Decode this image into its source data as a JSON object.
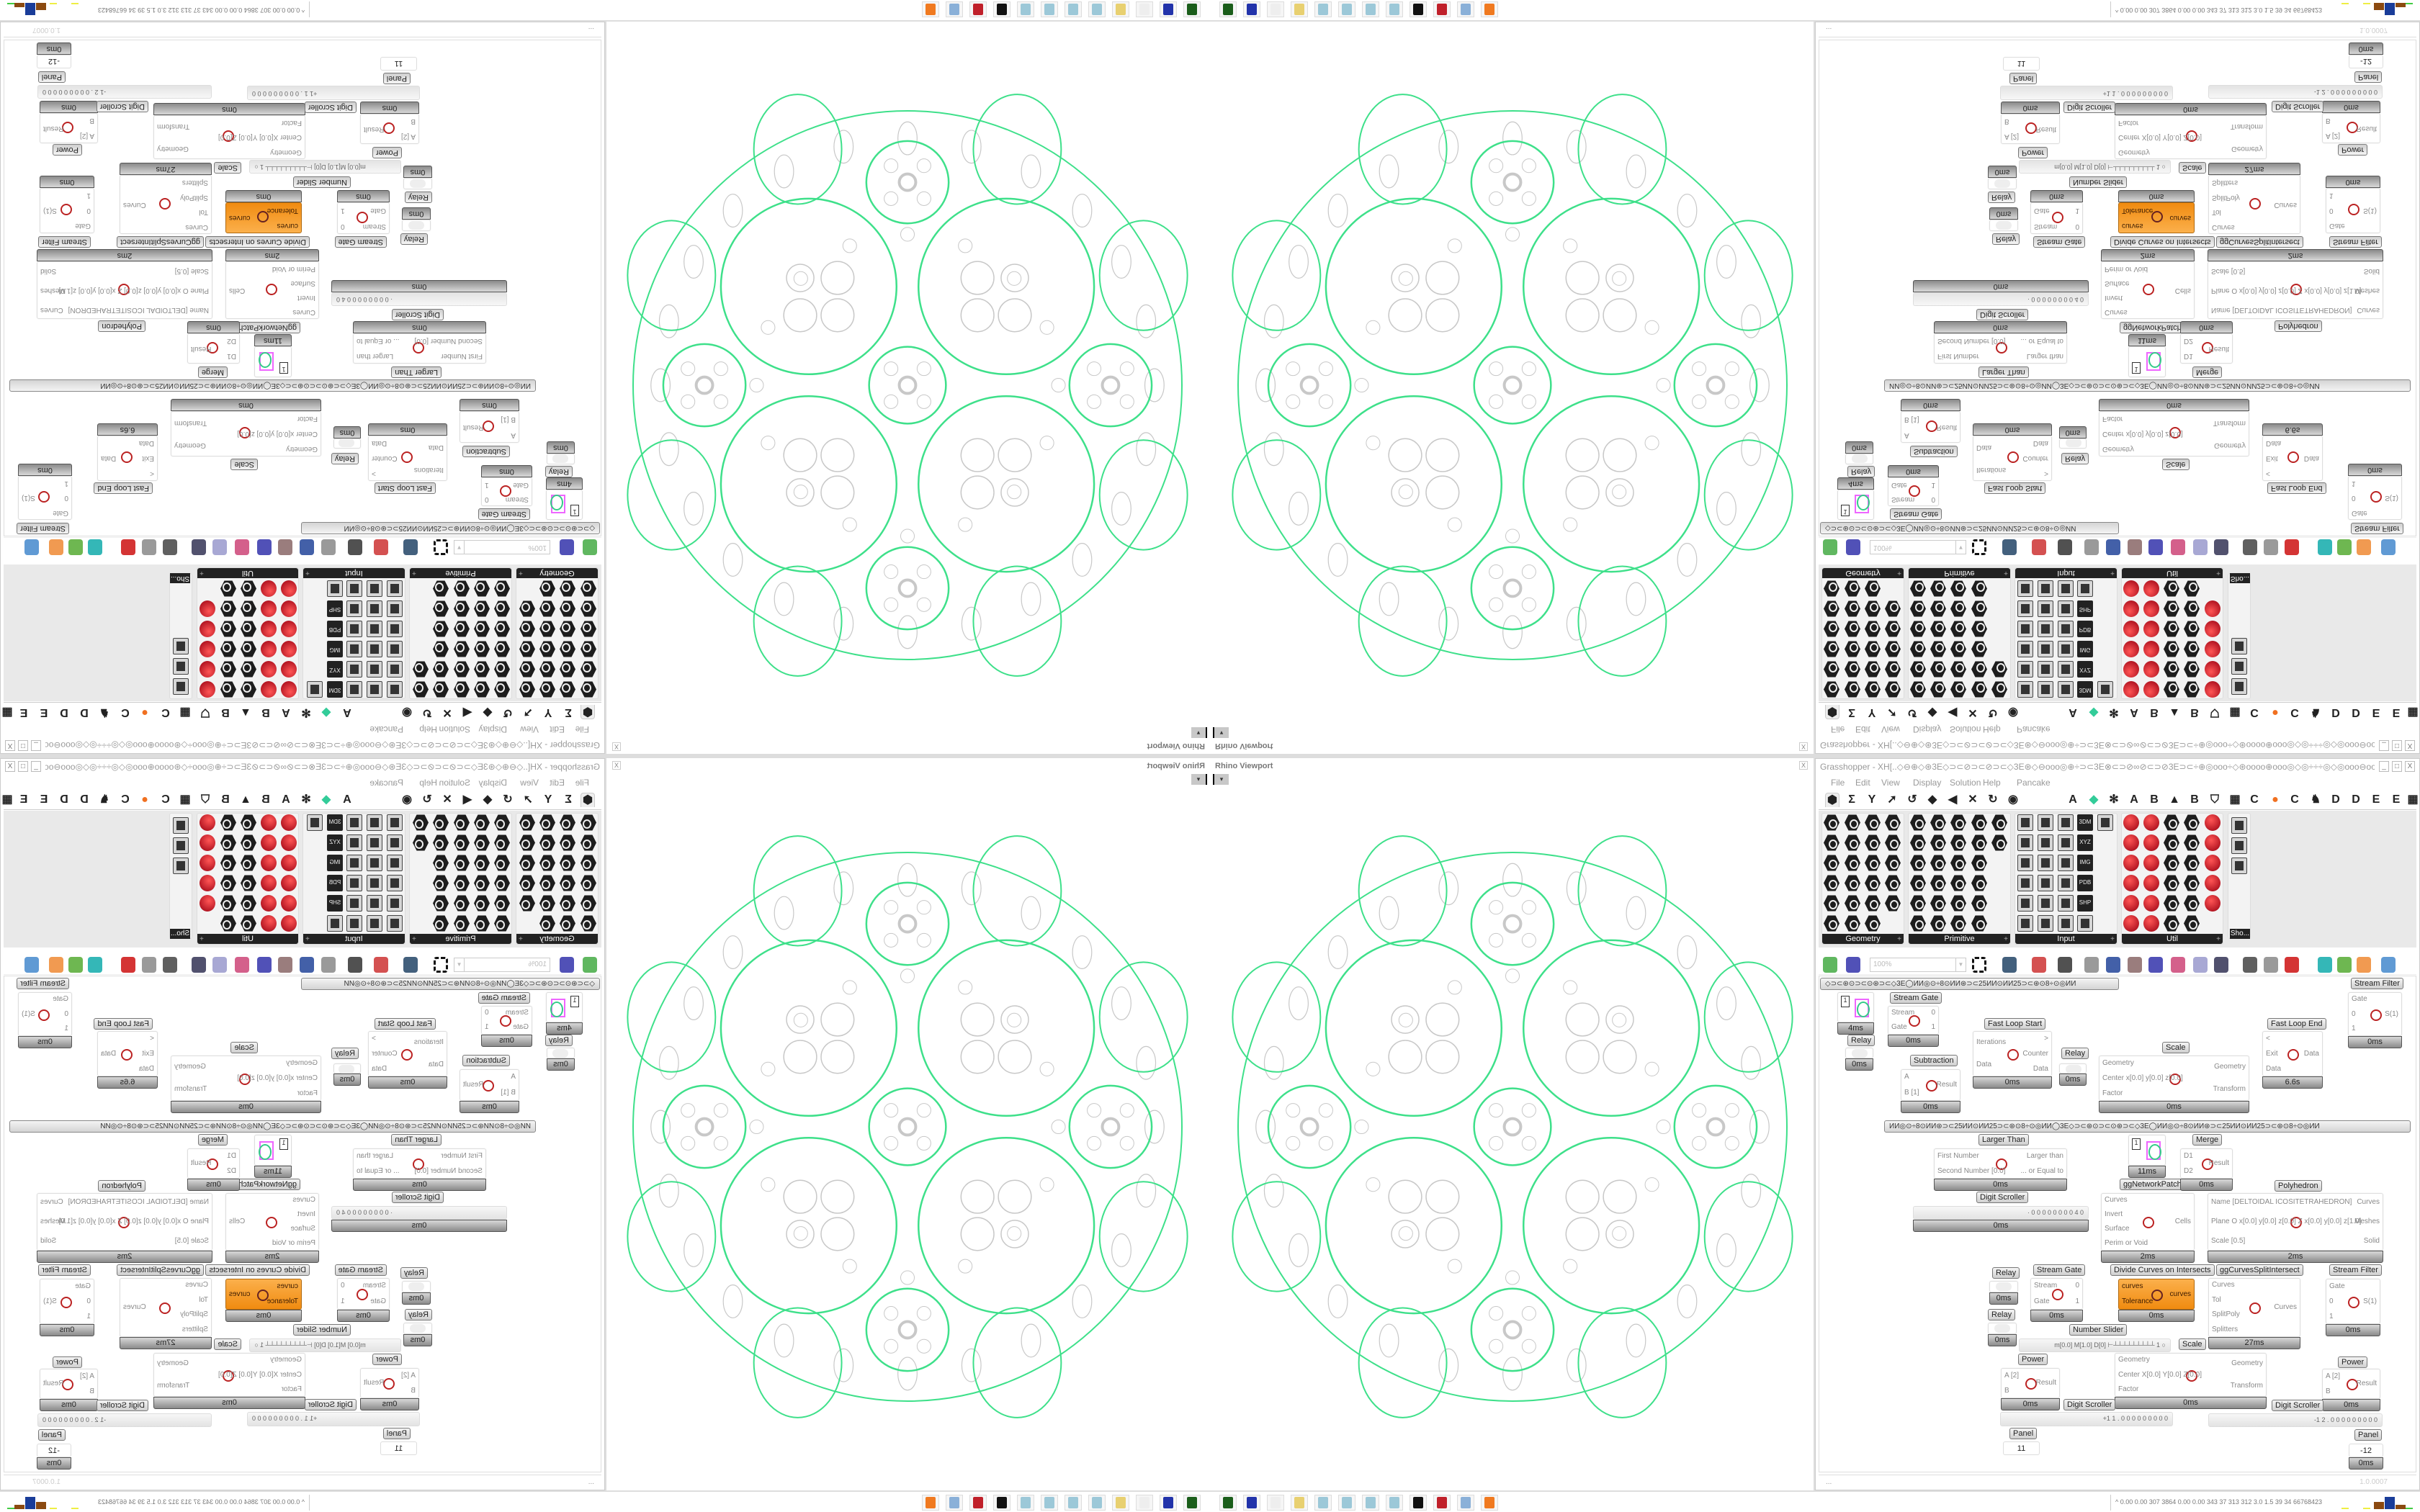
{
  "viewport": {
    "title": "Rhino Viewport",
    "close": "X",
    "dropdown": "▾",
    "accent_green": "#3ee08a",
    "curve_grey": "#c8c8c8"
  },
  "window": {
    "title": "Grasshopper - XH[..◇⊖⊕◇⊛3E◇⊃⊂⊘⊃⊂⊘⊃⊂◇3E⊛◇⊖ооо◎⊕÷⊃⊂3E⊗⊂⊃⊘∞⊘⊂⊃⊘3E⊃⊂÷⊕◎ооо÷◇⊛оооо⊕ооо◎◇◎÷÷÷◎◇◎ооо⊖ооо⊛◇⊖ооо◎⊕÷⊃⊂3E⊗⊂⊃⊘∞⊘⊂⊃..",
    "min": "_",
    "max": "□",
    "close": "X"
  },
  "menu": [
    "File",
    "Edit",
    "View",
    "Display",
    "Solution",
    "Help",
    "Pancake"
  ],
  "tabs": [
    {
      "icon": "params-hex-icon",
      "glyph": "⬢"
    },
    {
      "icon": "maths-sigma-icon",
      "glyph": "Σ"
    },
    {
      "icon": "sets-icon",
      "glyph": "Y"
    },
    {
      "icon": "vector-arrow-icon",
      "glyph": "➚"
    },
    {
      "icon": "curve-icon",
      "glyph": "↺"
    },
    {
      "icon": "surface-icon",
      "glyph": "◆"
    },
    {
      "icon": "mesh-icon",
      "glyph": "◀"
    },
    {
      "icon": "intersect-icon",
      "glyph": "✕"
    },
    {
      "icon": "transform-icon",
      "glyph": "↻"
    },
    {
      "icon": "display-eye-icon",
      "glyph": "◉"
    },
    {
      "icon": "plugin-a-icon",
      "glyph": "A"
    },
    {
      "icon": "gem-icon",
      "glyph": "◆"
    },
    {
      "icon": "puzzle-icon",
      "glyph": "✻"
    },
    {
      "icon": "plugin-a-icon",
      "glyph": "A"
    },
    {
      "icon": "plugin-b-icon",
      "glyph": "B"
    },
    {
      "icon": "mountain-icon",
      "glyph": "▲"
    },
    {
      "icon": "plugin-b-icon",
      "glyph": "B"
    },
    {
      "icon": "shield-icon",
      "glyph": "⛉"
    },
    {
      "icon": "grid-icon",
      "glyph": "▦"
    },
    {
      "icon": "plugin-c-icon",
      "glyph": "C"
    },
    {
      "icon": "orange-circle-icon",
      "glyph": "●"
    },
    {
      "icon": "plugin-c-icon",
      "glyph": "C"
    },
    {
      "icon": "chicken-icon",
      "glyph": "♞"
    },
    {
      "icon": "plugin-d-icon",
      "glyph": "D"
    },
    {
      "icon": "plugin-d-icon",
      "glyph": "D"
    },
    {
      "icon": "plugin-e-icon",
      "glyph": "E"
    },
    {
      "icon": "plugin-e-icon",
      "glyph": "E"
    },
    {
      "icon": "more-tabs-icon",
      "glyph": "▦"
    }
  ],
  "ribbon": {
    "panels": [
      {
        "label": "Geometry",
        "style": "hex",
        "rows": [
          4,
          4,
          4,
          4,
          4,
          3
        ]
      },
      {
        "label": "Primitive",
        "style": "hex",
        "rows": [
          5,
          5,
          4,
          4,
          4,
          4
        ]
      },
      {
        "label": "Input",
        "style": "sq",
        "rows": [
          5,
          4,
          4,
          4,
          4,
          4
        ]
      },
      {
        "label": "Util",
        "style": "misc",
        "rows": [
          5,
          5,
          5,
          5,
          5,
          4
        ]
      }
    ],
    "sho_label": "Sho...",
    "plus": "+",
    "input_chip_labels": [
      "3DM",
      "XYZ",
      "IMG",
      "PDB",
      "SHP"
    ]
  },
  "toolbar": {
    "zoom": "100%",
    "icons": [
      "new-file-icon",
      "save-icon",
      "zoom-extents-icon",
      "preview-eye-icon",
      "sketch-pen-icon",
      "bug-icon",
      "at-icon",
      "gha-icon",
      "canvas-image-icon",
      "search-icon",
      "package-icon",
      "bulb-icon",
      "wires-icon",
      "shaded-preview-icon",
      "wireframe-preview-icon",
      "red-shape-icon",
      "teal-shape-icon",
      "green-shape-icon",
      "orange-sphere-icon",
      "blue-sphere-icon"
    ]
  },
  "canvas": {
    "groups": [
      "◇⊃⊂⊛⊙⊃⊂⊙⊛⊃⊂◇3E◯ИИ◎⊙÷8⊙ИИ⊛⊃⊂25ИИ⊙ИИ25⊃⊂⊛⊙8÷⊙◎ИИ",
      "ИИ◎⊙÷8⊙ИИ⊛⊃⊂25ИИ⊙ИИ25⊃⊂⊛⊙8÷⊙◎ИИ◯3E◇⊃⊂⊛⊙⊃⊂⊙⊛⊃⊂◇3E◯ИИ◎⊙÷8⊙ИИ⊛⊃⊂25ИИ⊙ИИ25⊃⊂⊛⊙8÷⊙◎ИИ"
    ],
    "nodes": [
      {
        "label": "",
        "kind": "swatch",
        "index": "1",
        "time": "4ms"
      },
      {
        "label": "Relay",
        "kind": "relay",
        "time": "0ms"
      },
      {
        "label": "Stream Gate",
        "inputs": [
          "Stream",
          "Gate"
        ],
        "outputs": [
          "0",
          "1"
        ],
        "time": "0ms"
      },
      {
        "label": "Fast Loop Start",
        "inputs": [
          "Iterations",
          "Data"
        ],
        "outputs": [
          ">",
          "Counter",
          "Data"
        ],
        "time": "0ms"
      },
      {
        "label": "Relay",
        "kind": "relay",
        "time": "0ms"
      },
      {
        "label": "Subtraction",
        "inputs": [
          "A",
          "B [1]"
        ],
        "outputs": [
          "Result"
        ],
        "time": "0ms"
      },
      {
        "label": "Scale",
        "inputs": [
          "Geometry",
          "Center x[0.0] y[0.0] z[0.0]",
          "Factor"
        ],
        "outputs": [
          "Geometry",
          "Transform"
        ],
        "time": "0ms"
      },
      {
        "label": "Fast Loop End",
        "inputs": [
          "<",
          "Exit",
          "Data"
        ],
        "outputs": [
          "Data"
        ],
        "time": "6.6s"
      },
      {
        "label": "Stream Filter",
        "inputs": [
          "Gate",
          "0",
          "1"
        ],
        "outputs": [
          "S(1)"
        ],
        "time": "0ms"
      },
      {
        "label": "Larger Than",
        "inputs": [
          "First Number",
          "Second Number [0.0]"
        ],
        "outputs": [
          "Larger than",
          "... or Equal to"
        ],
        "time": "0ms"
      },
      {
        "label": "",
        "kind": "swatch",
        "index": "1",
        "time": "11ms"
      },
      {
        "label": "ggNetworkPatch",
        "inputs": [
          "Curves",
          "Invert",
          "Surface",
          "Perim or Void"
        ],
        "outputs": [
          "Cells"
        ],
        "time": "2ms"
      },
      {
        "label": "Merge",
        "inputs": [
          "D1",
          "D2"
        ],
        "outputs": [
          "Result"
        ],
        "time": "0ms"
      },
      {
        "label": "Digit Scroller",
        "kind": "slider",
        "value": "· 0 0 0 0 0 0 0 0 4 0",
        "time": "0ms"
      },
      {
        "label": "Polyhedron",
        "inputs": [
          "Name [DELTOIDAL ICOSITETRAHEDRON]",
          "Plane  O x[0.0] y[0.0] z[0.0]  Z x[0.0] y[0.0] z[1.0]",
          "Scale [0.5]"
        ],
        "outputs": [
          "Curves",
          "Meshes",
          "Solid"
        ],
        "time": "2ms"
      },
      {
        "label": "Relay",
        "kind": "relay",
        "time": "0ms"
      },
      {
        "label": "Stream Gate",
        "inputs": [
          "Stream",
          "Gate"
        ],
        "outputs": [
          "0",
          "1"
        ],
        "time": "0ms"
      },
      {
        "label": "Relay",
        "kind": "relay",
        "time": "0ms"
      },
      {
        "label": "Divide Curves on Intersects",
        "kind": "orange",
        "inputs": [
          "curves",
          "Tolerance"
        ],
        "outputs": [
          "curves"
        ],
        "time": "0ms"
      },
      {
        "label": "ggCurvesSplitIntersect",
        "inputs": [
          "Curves",
          "Tol",
          "SplitPoly",
          "Splitters"
        ],
        "outputs": [
          "Curves"
        ],
        "time": "27ms"
      },
      {
        "label": "Stream Filter",
        "inputs": [
          "Gate",
          "0",
          "1"
        ],
        "outputs": [
          "S(1)"
        ],
        "time": "0ms"
      },
      {
        "label": "Number Slider",
        "kind": "slider",
        "value": "m[0.0] M[1.0] D[0]  ⊢┴┴┴┴┴┴┴┴┴ 1 ○",
        "time": ""
      },
      {
        "label": "Scale",
        "inputs": [
          "Geometry",
          "Center X[0.0] Y[0.0] Z[0.0]",
          "Factor"
        ],
        "outputs": [
          "Geometry",
          "Transform"
        ],
        "time": "0ms"
      },
      {
        "label": "Power",
        "inputs": [
          "A [2]",
          "B"
        ],
        "outputs": [
          "Result"
        ],
        "time": "0ms"
      },
      {
        "label": "Digit Scroller",
        "kind": "slider",
        "value": "+1 1 . 0 0 0 0 0 0 0 0 0",
        "time": ""
      },
      {
        "label": "Power",
        "inputs": [
          "A [2]",
          "B"
        ],
        "outputs": [
          "Result"
        ],
        "time": "0ms"
      },
      {
        "label": "Digit Scroller",
        "kind": "slider",
        "value": "-1 2 . 0 0 0 0 0 0 0 0 0",
        "time": ""
      },
      {
        "label": "Panel",
        "kind": "panel",
        "value": "11",
        "time": ""
      },
      {
        "label": "Panel",
        "kind": "panel",
        "value": "-12",
        "time": "0ms"
      }
    ]
  },
  "status": {
    "left": "...",
    "version": "1.0.0007"
  },
  "taskbar": {
    "icons": [
      "terminal-icon",
      "floppy-64-icon",
      "blank-icon",
      "folder-icon",
      "notepad-icon",
      "notepad-icon",
      "notepad-icon",
      "notepad-icon",
      "inkscape-icon",
      "red-app-icon",
      "calculator-icon",
      "firefox-icon"
    ],
    "stats": "^  0.00 0.00 307 3864 0.00 0.00 343  37  313  312  3.0  1.5  39  34  66768423"
  }
}
